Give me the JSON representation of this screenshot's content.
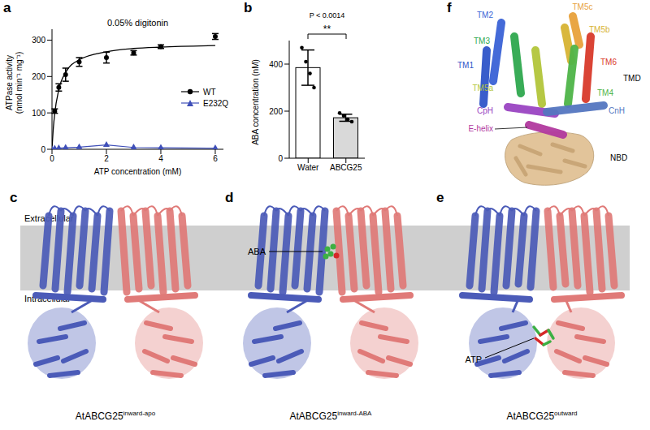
{
  "chart_data": [
    {
      "panel": "a",
      "type": "scatter",
      "title": "0.05% digitonin",
      "x_label": "ATP concentration (mM)",
      "y_label": "ATPase activity (nmol min⁻¹ mg⁻¹)",
      "xlim": [
        0,
        6.3
      ],
      "xticks": [
        0,
        2,
        4,
        6
      ],
      "ylim": [
        0,
        330
      ],
      "yticks": [
        0,
        100,
        200,
        300
      ],
      "legend": "right",
      "series": [
        {
          "name": "WT",
          "color": "#000000",
          "marker": "circle",
          "x": [
            0.1,
            0.25,
            0.5,
            1,
            2,
            3,
            4,
            6
          ],
          "values": [
            105,
            170,
            205,
            240,
            252,
            265,
            282,
            310
          ],
          "error": [
            6,
            10,
            18,
            12,
            15,
            6,
            5,
            8
          ]
        },
        {
          "name": "E232Q",
          "color": "#3f4fb8",
          "marker": "triangle",
          "line_style": "solid",
          "x": [
            0,
            0.1,
            0.25,
            0.5,
            1,
            2,
            3,
            4,
            6
          ],
          "values": [
            0,
            2,
            3,
            4,
            6,
            12,
            5,
            4,
            3
          ]
        },
        {
          "type": "line",
          "color": "#000000",
          "marker": "none",
          "line_style": "solid",
          "x": [
            0,
            0.05,
            0.1,
            0.25,
            0.5,
            1,
            2,
            3,
            4,
            6
          ],
          "values": [
            0,
            59,
            98,
            164,
            211,
            246,
            268,
            277,
            281,
            285
          ]
        }
      ]
    },
    {
      "panel": "b",
      "type": "bar",
      "categories": [
        "Water",
        "ABCG25"
      ],
      "values": [
        385,
        172
      ],
      "error": [
        75,
        15
      ],
      "points": [
        [
          470,
          410,
          360,
          300
        ],
        [
          192,
          180,
          165,
          155
        ]
      ],
      "colors": [
        "#ffffff",
        "#d9d9d9"
      ],
      "y_label": "ABA concentration (nM)",
      "ylim": [
        0,
        500
      ],
      "yticks": [
        0,
        200,
        400
      ],
      "annotations": {
        "significance": "**",
        "p_value": "P < 0.0014"
      }
    }
  ],
  "structures": {
    "membrane": {
      "top": "Extracellular",
      "bottom": "Intracellular"
    },
    "models": [
      {
        "panel": "c",
        "name": "AtABCG25",
        "state": "inward-apo",
        "colors": [
          "#4b5bb8",
          "#e07a78"
        ]
      },
      {
        "panel": "d",
        "name": "AtABCG25",
        "state": "inward-ABA",
        "ligand": "ABA",
        "colors": [
          "#4b5bb8",
          "#e07a78"
        ]
      },
      {
        "panel": "e",
        "name": "AtABCG25",
        "state": "outward",
        "ligand": "ATP",
        "colors": [
          "#4b5bb8",
          "#e07a78"
        ]
      }
    ],
    "topology": {
      "panel": "f",
      "helices": [
        {
          "label": "TM2",
          "color": "#3a63d6"
        },
        {
          "label": "TM5c",
          "color": "#e8a23c"
        },
        {
          "label": "TM5b",
          "color": "#d8b433"
        },
        {
          "label": "TM3",
          "color": "#2fa84f"
        },
        {
          "label": "TM6",
          "color": "#d93a2b"
        },
        {
          "label": "TM1",
          "color": "#2f55c9"
        },
        {
          "label": "TM4",
          "color": "#4fb548"
        },
        {
          "label": "TM5a",
          "color": "#b3c63a"
        },
        {
          "label": "CpH",
          "color": "#9a45c2"
        },
        {
          "label": "CnH",
          "color": "#5577c0"
        },
        {
          "label": "E-helix",
          "color": "#b2399f"
        }
      ],
      "domains": [
        {
          "label": "TMD"
        },
        {
          "label": "NBD",
          "color": "#e2c49a"
        }
      ]
    }
  }
}
